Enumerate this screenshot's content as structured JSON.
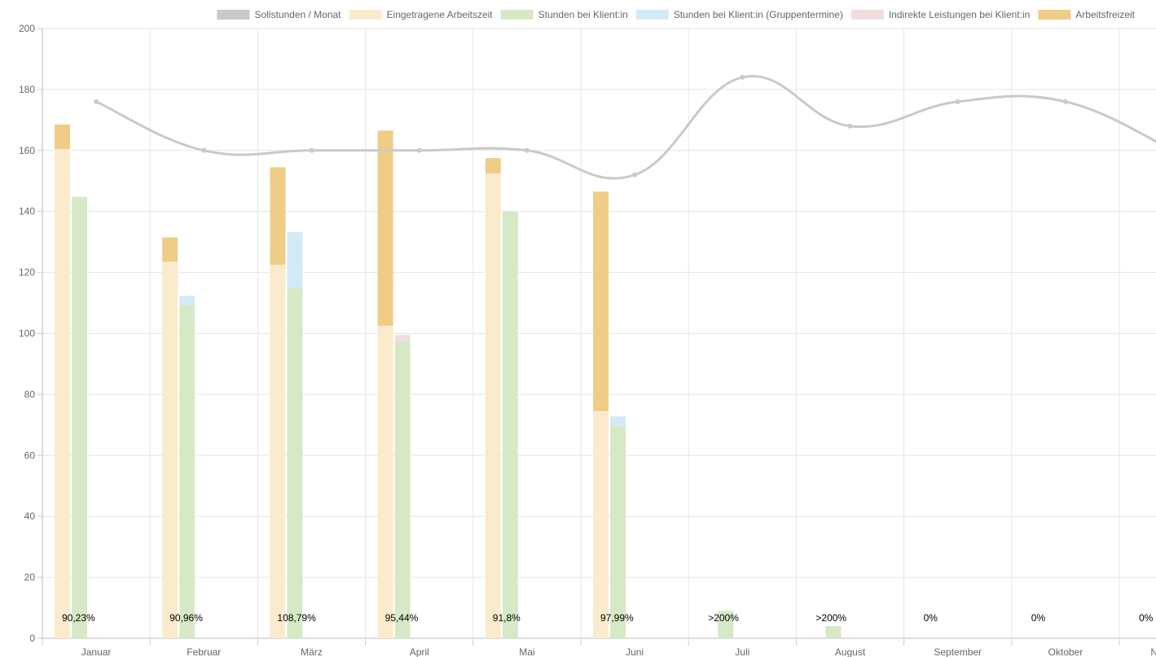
{
  "chart_data": {
    "type": "bar",
    "categories": [
      "Januar",
      "Februar",
      "März",
      "April",
      "Mai",
      "Juni",
      "Juli",
      "August",
      "September",
      "Oktober",
      "November"
    ],
    "ylim": [
      0,
      200
    ],
    "yticks": [
      0,
      20,
      40,
      60,
      80,
      100,
      120,
      140,
      160,
      180,
      200
    ],
    "grid": true,
    "legend_position": "top",
    "legend": [
      {
        "name": "Sollstunden / Monat",
        "color": "#c9c9c9"
      },
      {
        "name": "Eingetragene Arbeitszeit",
        "color": "#faebcc"
      },
      {
        "name": "Stunden bei Klient:in",
        "color": "#d6e9c6"
      },
      {
        "name": "Stunden bei Klient:in (Gruppentermine)",
        "color": "#d3ebf7"
      },
      {
        "name": "Indirekte Leistungen bei Klient:in",
        "color": "#f2dede"
      },
      {
        "name": "Arbeitsfreizeit",
        "color": "#efcd86"
      }
    ],
    "series": [
      {
        "name": "Sollstunden / Monat",
        "kind": "line",
        "color": "#c9c9c9",
        "values": [
          176,
          160,
          160,
          160,
          160,
          152,
          184,
          168,
          176,
          176,
          160
        ]
      },
      {
        "name": "Eingetragene Arbeitszeit",
        "kind": "bar",
        "stack": "a",
        "color": "#faebcc",
        "values": [
          160.5,
          123.5,
          122.5,
          102.5,
          152.5,
          74.5,
          0,
          0,
          0,
          0,
          0
        ]
      },
      {
        "name": "Arbeitsfreizeit",
        "kind": "bar",
        "stack": "a",
        "color": "#efcd86",
        "values": [
          8,
          8,
          32,
          64,
          5,
          72,
          0,
          0,
          0,
          0,
          0
        ]
      },
      {
        "name": "Stunden bei Klient:in",
        "kind": "bar",
        "stack": "b",
        "color": "#d6e9c6",
        "values": [
          144.8,
          109.3,
          114.7,
          97.5,
          140,
          69.5,
          9,
          4,
          0,
          0,
          0
        ]
      },
      {
        "name": "Stunden bei Klient:in (Gruppentermine)",
        "kind": "bar",
        "stack": "b",
        "color": "#d3ebf7",
        "values": [
          0,
          3,
          18.5,
          0,
          0,
          3.3,
          0,
          0,
          0,
          0,
          0
        ]
      },
      {
        "name": "Indirekte Leistungen bei Klient:in",
        "kind": "bar",
        "stack": "b",
        "color": "#f2dede",
        "values": [
          0,
          0,
          0,
          2,
          0,
          0,
          0,
          0,
          0,
          0,
          0
        ]
      }
    ],
    "percent_labels": [
      "90,23%",
      "90,96%",
      "108,79%",
      "95,44%",
      "91,8%",
      "97,99%",
      ">200%",
      ">200%",
      "0%",
      "0%",
      "0%"
    ]
  }
}
